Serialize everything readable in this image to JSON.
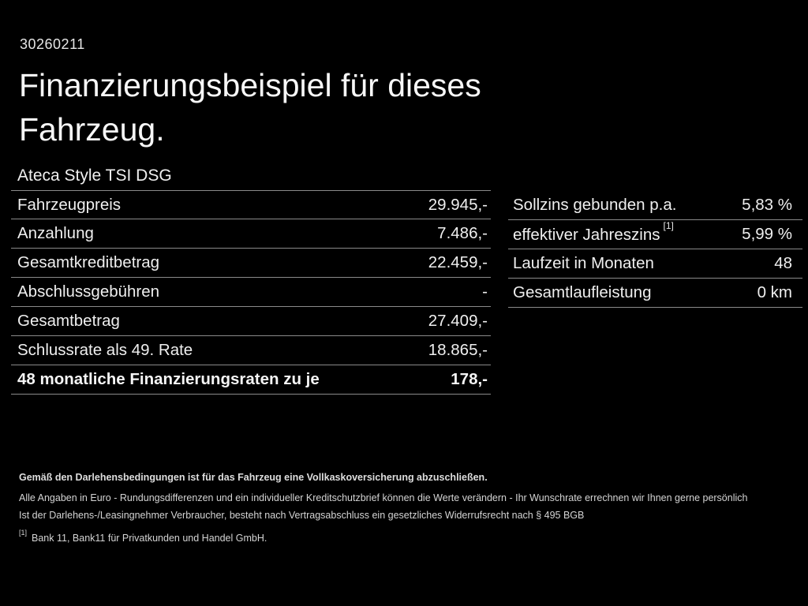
{
  "colors": {
    "background": "#000000",
    "text": "#f2f2f2",
    "divider": "#8a8a8a"
  },
  "header": {
    "vehicle_id": "30260211",
    "title_line1": "Finanzierungsbeispiel für dieses",
    "title_line2": "Fahrzeug.",
    "model_name": "Ateca Style TSI DSG"
  },
  "finance_table": {
    "rows": [
      {
        "label": "Fahrzeugpreis",
        "value": "29.945,-"
      },
      {
        "label": "Anzahlung",
        "value": "7.486,-"
      },
      {
        "label": "Gesamtkreditbetrag",
        "value": "22.459,-"
      },
      {
        "label": "Abschlussgebühren",
        "value": "-"
      },
      {
        "label": "Gesamtbetrag",
        "value": "27.409,-"
      },
      {
        "label": "Schlussrate als 49. Rate",
        "value": "18.865,-"
      },
      {
        "label": "48 monatliche Finanzierungsraten zu je",
        "value": "178,-"
      }
    ]
  },
  "conditions_table": {
    "rows": [
      {
        "label": "Sollzins gebunden p.a.",
        "value": "5,83 %"
      },
      {
        "label": "effektiver Jahreszins",
        "footnote_ref": "[1]",
        "value": "5,99 %"
      },
      {
        "label": "Laufzeit in Monaten",
        "value": "48"
      },
      {
        "label": "Gesamtlaufleistung",
        "value": "0 km"
      }
    ]
  },
  "disclaimer": {
    "line1": "Gemäß den Darlehensbedingungen ist für das Fahrzeug eine Vollkaskoversicherung abzuschließen.",
    "line2": "Alle Angaben in Euro - Rundungsdifferenzen und ein individueller Kreditschutzbrief können die Werte verändern - Ihr Wunschrate errechnen wir Ihnen gerne persönlich",
    "line3": "Ist der Darlehens-/Leasingnehmer Verbraucher, besteht nach Vertragsabschluss ein gesetzliches Widerrufsrecht nach § 495 BGB",
    "footnote_marker": "[1]",
    "footnote_text": "Bank 11, Bank11 für Privatkunden und Handel GmbH."
  }
}
